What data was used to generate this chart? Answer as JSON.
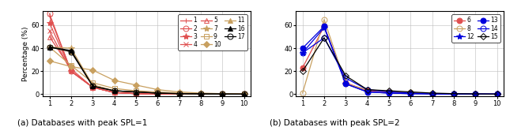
{
  "x": [
    1,
    2,
    3,
    4,
    5,
    6,
    7,
    8,
    9,
    10
  ],
  "subplot_a": {
    "title": "(a) Databases with peak SPL=1",
    "ylabel": "Percentage (%)",
    "ylim": [
      0,
      72
    ],
    "yticks": [
      0,
      20,
      40,
      60
    ],
    "series": [
      {
        "label": "1",
        "color": "#e05050",
        "marker": "+",
        "mfc": "#e05050",
        "ms": 5,
        "lw": 0.9,
        "values": [
          68,
          20,
          6,
          1.5,
          0.5,
          0.3,
          0.2,
          0.1,
          0.1,
          0.1
        ]
      },
      {
        "label": "2",
        "color": "#e05050",
        "marker": "o",
        "mfc": "none",
        "ms": 5,
        "lw": 0.9,
        "values": [
          70,
          20,
          6,
          1.5,
          0.5,
          0.3,
          0.2,
          0.1,
          0.1,
          0.1
        ]
      },
      {
        "label": "3",
        "color": "#e05050",
        "marker": "*",
        "mfc": "#e05050",
        "ms": 6,
        "lw": 0.9,
        "values": [
          62,
          20,
          6,
          1.5,
          0.5,
          0.3,
          0.2,
          0.1,
          0.1,
          0.1
        ]
      },
      {
        "label": "4",
        "color": "#e05050",
        "marker": "x",
        "mfc": "#e05050",
        "ms": 5,
        "lw": 0.9,
        "values": [
          55,
          20,
          6,
          1.5,
          0.5,
          0.3,
          0.2,
          0.1,
          0.1,
          0.1
        ]
      },
      {
        "label": "5",
        "color": "#e05050",
        "marker": "^",
        "mfc": "none",
        "ms": 4,
        "lw": 0.9,
        "values": [
          50,
          22,
          6,
          1.5,
          0.5,
          0.3,
          0.2,
          0.1,
          0.1,
          0.1
        ]
      },
      {
        "label": "7",
        "color": "#c8a060",
        "marker": "*",
        "mfc": "#c8a060",
        "ms": 6,
        "lw": 0.9,
        "values": [
          41,
          40,
          8,
          3,
          2,
          1,
          0.5,
          0.3,
          0.2,
          0.1
        ]
      },
      {
        "label": "9",
        "color": "#c8a060",
        "marker": "s",
        "mfc": "none",
        "ms": 4,
        "lw": 0.9,
        "values": [
          41,
          25,
          10,
          5,
          3,
          2,
          1,
          0.5,
          0.3,
          0.1
        ]
      },
      {
        "label": "10",
        "color": "#c8a060",
        "marker": "D",
        "mfc": "#c8a060",
        "ms": 4,
        "lw": 0.9,
        "values": [
          29,
          24,
          21,
          12,
          8,
          4,
          2,
          1,
          0.5,
          0.3
        ]
      },
      {
        "label": "11",
        "color": "#c8a060",
        "marker": "^",
        "mfc": "#c8a060",
        "ms": 4,
        "lw": 0.9,
        "values": [
          41,
          37,
          8,
          3,
          2,
          1,
          0.5,
          0.3,
          0.2,
          0.1
        ]
      },
      {
        "label": "16",
        "color": "#000000",
        "marker": "^",
        "mfc": "#000000",
        "ms": 4,
        "lw": 0.9,
        "values": [
          41,
          38,
          7,
          3,
          2,
          1,
          0.5,
          0.3,
          0.2,
          0.1
        ]
      },
      {
        "label": "17",
        "color": "#000000",
        "marker": "o",
        "mfc": "none",
        "ms": 5,
        "lw": 0.9,
        "values": [
          41,
          37,
          7,
          3,
          2,
          1,
          0.5,
          0.3,
          0.2,
          0.1
        ]
      }
    ],
    "legend_ncol": 3
  },
  "subplot_b": {
    "title": "(b) Databases with peak SPL=2",
    "ylim": [
      0,
      72
    ],
    "yticks": [
      0,
      20,
      40,
      60
    ],
    "series": [
      {
        "label": "6",
        "color": "#e05050",
        "marker": "o",
        "mfc": "#e05050",
        "ms": 5,
        "lw": 0.9,
        "values": [
          23,
          59,
          10,
          3,
          2,
          1,
          0.5,
          0.3,
          0.2,
          0.1
        ]
      },
      {
        "label": "8",
        "color": "#c8a060",
        "marker": "o",
        "mfc": "none",
        "ms": 5,
        "lw": 0.9,
        "values": [
          1,
          65,
          9,
          4,
          2.5,
          1.5,
          0.5,
          0.3,
          0.2,
          0.1
        ]
      },
      {
        "label": "12",
        "color": "#0000dd",
        "marker": "*",
        "mfc": "#0000dd",
        "ms": 6,
        "lw": 0.9,
        "values": [
          36,
          58,
          9,
          2,
          1,
          0.5,
          0.3,
          0.2,
          0.1,
          0.1
        ]
      },
      {
        "label": "13",
        "color": "#0000dd",
        "marker": "o",
        "mfc": "#0000dd",
        "ms": 5,
        "lw": 0.9,
        "values": [
          40,
          59,
          9,
          2,
          1,
          0.5,
          0.3,
          0.2,
          0.1,
          0.1
        ]
      },
      {
        "label": "14",
        "color": "#0000dd",
        "marker": "o",
        "mfc": "none",
        "ms": 5,
        "lw": 0.9,
        "values": [
          36,
          49,
          14,
          4,
          2,
          1,
          0.5,
          0.3,
          0.2,
          0.1
        ]
      },
      {
        "label": "15",
        "color": "#000000",
        "marker": "D",
        "mfc": "none",
        "ms": 4,
        "lw": 0.9,
        "values": [
          20,
          49,
          16,
          4,
          3,
          2,
          1,
          0.5,
          0.3,
          0.1
        ]
      }
    ],
    "legend_ncol": 2
  },
  "fig_width": 6.4,
  "fig_height": 1.61,
  "dpi": 100
}
